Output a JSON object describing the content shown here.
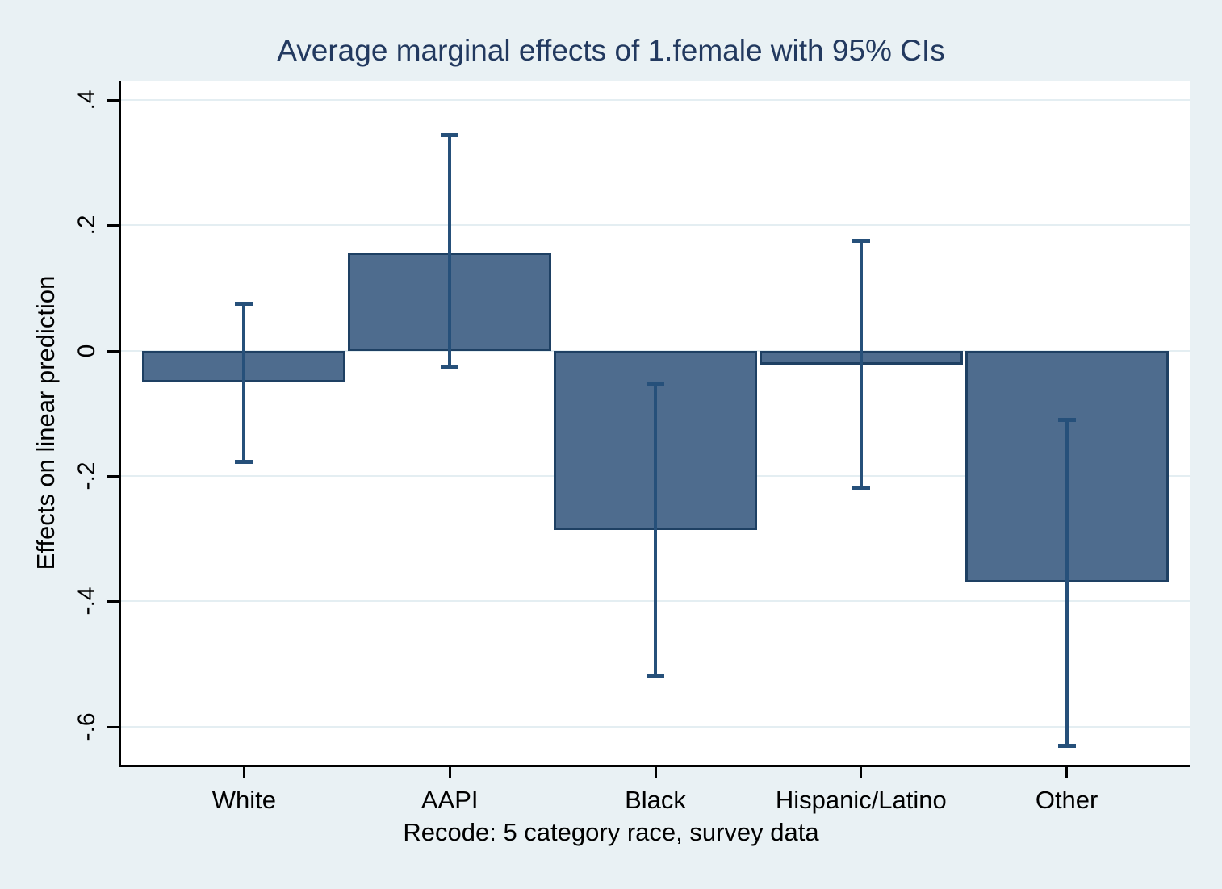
{
  "title": "Average marginal effects of 1.female with 95% CIs",
  "colors": {
    "background": "#e9f1f4",
    "plot_background": "#ffffff",
    "gridline": "#e4eef2",
    "bar_fill": "#4e6c8e",
    "bar_border": "#1e4063",
    "ci_line": "#26507a",
    "title_text": "#22395f",
    "axis_text": "#000000",
    "axis_line": "#000000"
  },
  "chart_data": {
    "type": "bar",
    "title": "Average marginal effects of 1.female with 95% CIs",
    "xlabel": "Recode: 5 category race, survey data",
    "ylabel": "Effects on linear prediction",
    "categories": [
      "White",
      "AAPI",
      "Black",
      "Hispanic/Latino",
      "Other"
    ],
    "values": [
      -0.051,
      0.157,
      -0.286,
      -0.022,
      -0.37
    ],
    "ci_low": [
      -0.178,
      -0.027,
      -0.519,
      -0.219,
      -0.631
    ],
    "ci_high": [
      0.075,
      0.344,
      -0.054,
      0.175,
      -0.111
    ],
    "ylim": [
      -0.661,
      0.431
    ],
    "yticks": [
      0.4,
      0.2,
      0,
      -0.2,
      -0.4,
      -0.6
    ],
    "ytick_labels": [
      ".4",
      ".2",
      "0",
      "-.2",
      "-.4",
      "-.6"
    ],
    "grid": true,
    "legend": false,
    "ci_level_label": "95% CIs"
  }
}
